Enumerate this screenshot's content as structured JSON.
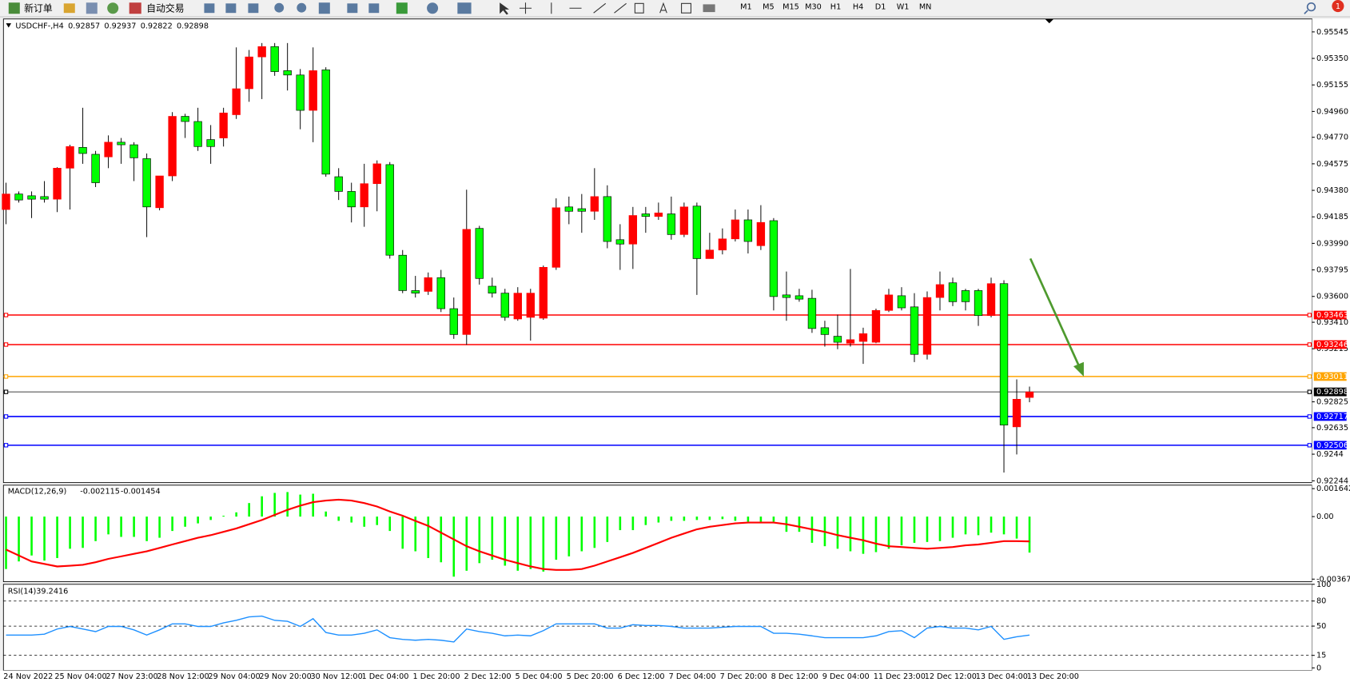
{
  "toolbar": {
    "new_order": "新订单",
    "auto_trading": "自动交易",
    "timeframes": [
      "M1",
      "M5",
      "M15",
      "M30",
      "H1",
      "H4",
      "D1",
      "W1",
      "MN"
    ],
    "notification_count": 1
  },
  "chart_data": [
    {
      "type": "candlestick",
      "title": "USDCHF-,H4",
      "categories": [
        "24 Nov 2022",
        null,
        null,
        null,
        "25 Nov 04:00",
        null,
        null,
        null,
        "27 Nov 23:00",
        null,
        null,
        null,
        "28 Nov 12:00",
        null,
        null,
        null,
        "29 Nov 04:00",
        null,
        null,
        null,
        "29 Nov 20:00",
        null,
        null,
        null,
        "30 Nov 12:00",
        null,
        null,
        null,
        "1 Dec 04:00",
        null,
        null,
        null,
        "1 Dec 20:00",
        null,
        null,
        null,
        "2 Dec 12:00",
        null,
        null,
        null,
        "5 Dec 04:00",
        null,
        null,
        null,
        "5 Dec 20:00",
        null,
        null,
        null,
        "6 Dec 12:00",
        null,
        null,
        null,
        "7 Dec 04:00",
        null,
        null,
        null,
        "7 Dec 20:00",
        null,
        null,
        null,
        "8 Dec 12:00",
        null,
        null,
        null,
        "9 Dec 04:00",
        null,
        null,
        null,
        "11 Dec 23:00",
        null,
        null,
        null,
        "12 Dec 12:00",
        null,
        null,
        null,
        "13 Dec 04:00",
        null,
        null,
        null,
        "13 Dec 20:00"
      ],
      "open": [
        0.94239,
        0.94353,
        0.9434,
        0.94334,
        0.94315,
        0.94543,
        0.94696,
        0.94645,
        0.94626,
        0.94734,
        0.94715,
        0.94613,
        0.94252,
        0.94486,
        0.94924,
        0.94886,
        0.94753,
        0.94765,
        0.94936,
        0.95127,
        0.95361,
        0.95437,
        0.9526,
        0.95228,
        0.94968,
        0.95266,
        0.9448,
        0.94372,
        0.94258,
        0.94429,
        0.94569,
        0.93903,
        0.93643,
        0.93637,
        0.93738,
        0.9351,
        0.9332,
        0.941,
        0.93675,
        0.93624,
        0.93434,
        0.93446,
        0.9344,
        0.93814,
        0.94258,
        0.94245,
        0.94226,
        0.94334,
        0.94017,
        0.93985,
        0.94207,
        0.94188,
        0.94207,
        0.94055,
        0.94264,
        0.93878,
        0.93941,
        0.94023,
        0.94163,
        0.93973,
        0.94157,
        0.93611,
        0.93605,
        0.93586,
        0.9337,
        0.93307,
        0.93256,
        0.93269,
        0.93263,
        0.93497,
        0.93605,
        0.93523,
        0.93174,
        0.93592,
        0.937,
        0.93643,
        0.93643,
        0.93459,
        0.93694,
        0.92641,
        0.92857
      ],
      "high": [
        0.94436,
        0.94372,
        0.94372,
        0.94448,
        0.9455,
        0.94715,
        0.94987,
        0.9467,
        0.94784,
        0.94765,
        0.94734,
        0.94651,
        0.94486,
        0.94955,
        0.94943,
        0.94987,
        0.9486,
        0.94987,
        0.95431,
        0.95412,
        0.95463,
        0.95463,
        0.95463,
        0.95272,
        0.95431,
        0.95285,
        0.94543,
        0.94436,
        0.94575,
        0.946,
        0.94588,
        0.93941,
        0.93751,
        0.93776,
        0.93795,
        0.93592,
        0.94385,
        0.94119,
        0.93738,
        0.93656,
        0.93668,
        0.93656,
        0.93827,
        0.94321,
        0.94334,
        0.94353,
        0.94543,
        0.94417,
        0.94131,
        0.94258,
        0.94258,
        0.9429,
        0.94334,
        0.9429,
        0.9429,
        0.94068,
        0.941,
        0.94239,
        0.94239,
        0.94271,
        0.94176,
        0.93783,
        0.93656,
        0.93649,
        0.93421,
        0.93466,
        0.93802,
        0.9337,
        0.9351,
        0.93656,
        0.93668,
        0.93624,
        0.93637,
        0.93783,
        0.93738,
        0.93656,
        0.93656,
        0.93738,
        0.93719,
        0.9299,
        0.92937
      ],
      "low": [
        0.94131,
        0.9429,
        0.94176,
        0.9429,
        0.9422,
        0.94239,
        0.94575,
        0.94404,
        0.94543,
        0.94575,
        0.94448,
        0.94036,
        0.94233,
        0.94448,
        0.94765,
        0.9467,
        0.94575,
        0.94702,
        0.94905,
        0.95031,
        0.95051,
        0.95222,
        0.95114,
        0.94829,
        0.94734,
        0.9448,
        0.94309,
        0.94144,
        0.94112,
        0.94226,
        0.93878,
        0.93624,
        0.93592,
        0.93611,
        0.93485,
        0.93288,
        0.93244,
        0.93687,
        0.93592,
        0.93421,
        0.93421,
        0.93275,
        0.93428,
        0.93795,
        0.94131,
        0.94068,
        0.94163,
        0.93954,
        0.93795,
        0.93802,
        0.94068,
        0.94163,
        0.94017,
        0.94036,
        0.93611,
        0.93878,
        0.93909,
        0.94004,
        0.93916,
        0.93941,
        0.93497,
        0.93421,
        0.93561,
        0.93332,
        0.93231,
        0.93212,
        0.93231,
        0.93104,
        0.93256,
        0.93485,
        0.93497,
        0.93117,
        0.93136,
        0.93497,
        0.93529,
        0.93497,
        0.93383,
        0.93446,
        0.92305,
        0.92438,
        0.92822
      ],
      "close": [
        0.94353,
        0.94309,
        0.94315,
        0.94315,
        0.94543,
        0.94702,
        0.94651,
        0.94436,
        0.94734,
        0.94715,
        0.94619,
        0.94258,
        0.94486,
        0.94924,
        0.94886,
        0.94702,
        0.94702,
        0.94949,
        0.95127,
        0.95361,
        0.95437,
        0.95253,
        0.95228,
        0.94968,
        0.9526,
        0.94499,
        0.94372,
        0.94258,
        0.94429,
        0.94575,
        0.93903,
        0.93643,
        0.93624,
        0.93738,
        0.9351,
        0.9332,
        0.94093,
        0.93732,
        0.93624,
        0.93446,
        0.93624,
        0.93624,
        0.93814,
        0.94252,
        0.94226,
        0.94226,
        0.94334,
        0.94004,
        0.93985,
        0.94195,
        0.94188,
        0.94214,
        0.94055,
        0.94258,
        0.93878,
        0.93941,
        0.94023,
        0.94163,
        0.94004,
        0.94144,
        0.93599,
        0.93592,
        0.9358,
        0.93364,
        0.9332,
        0.93263,
        0.93282,
        0.93326,
        0.93497,
        0.93611,
        0.93516,
        0.93174,
        0.93592,
        0.93687,
        0.93561,
        0.93561,
        0.93459,
        0.93694,
        0.92654,
        0.92844,
        0.92898
      ],
      "up_color": "#ff0000",
      "down_color": "#00ff00",
      "ylim": [
        0.92231,
        0.9564
      ],
      "yticks": [
        0.95545,
        {
          "value": 0.9535,
          "label": "0.95350"
        },
        0.95155,
        {
          "value": 0.9496,
          "label": "0.94960"
        },
        {
          "value": 0.9477,
          "label": "0.94770"
        },
        0.94575,
        {
          "value": 0.9438,
          "label": "0.94380"
        },
        0.94185,
        {
          "value": 0.9399,
          "label": "0.93990"
        },
        0.93795,
        {
          "value": 0.936,
          "label": "0.93600"
        },
        {
          "value": 0.9341,
          "label": "0.93410"
        },
        0.93215,
        0.92825,
        0.92635,
        0.9244,
        0.92244
      ],
      "levels": [
        {
          "value": 0.93463,
          "color": "#ff0000"
        },
        {
          "value": 0.93246,
          "color": "#ff0000"
        },
        {
          "value": 0.93011,
          "color": "#ffa500"
        },
        {
          "value": 0.92898,
          "color": "#000000"
        },
        {
          "value": 0.92717,
          "color": "#0000ff"
        },
        {
          "value": 0.92506,
          "color": "#0000ff"
        }
      ]
    },
    {
      "type": "macd",
      "title": "MACD(12,26,9)",
      "series": [
        {
          "mark": "bar",
          "color": "#00ff00",
          "values": [
            -0.003081,
            -0.002634,
            -0.002286,
            -0.002584,
            -0.002435,
            -0.001889,
            -0.001839,
            -0.001441,
            -0.001044,
            -0.001193,
            -0.001193,
            -0.001441,
            -0.001243,
            -0.000845,
            -0.000596,
            -0.000398,
            -0.000199,
            5e-05,
            0.000249,
            0.000795,
            0.001193,
            0.001392,
            0.001441,
            0.001292,
            0.001342,
            0.000298,
            -0.000249,
            -0.000348,
            -0.000596,
            -0.000497,
            -0.000845,
            -0.001889,
            -0.002038,
            -0.002435,
            -0.002684,
            -0.003529,
            -0.003181,
            -0.002734,
            -0.002535,
            -0.002883,
            -0.003181,
            -0.003081,
            -0.003231,
            -0.002535,
            -0.002336,
            -0.002038,
            -0.001839,
            -0.001491,
            -0.000795,
            -0.000795,
            -0.000497,
            -0.000348,
            -0.000249,
            -0.000249,
            -0.000199,
            -0.000199,
            -0.000149,
            -0.000249,
            -0.000298,
            -0.000298,
            -0.000298,
            -0.000895,
            -0.000895,
            -0.001541,
            -0.00174,
            -0.001889,
            -0.002038,
            -0.002187,
            -0.002087,
            -0.001889,
            -0.00169,
            -0.001541,
            -0.001491,
            -0.001441,
            -0.001243,
            -0.001044,
            -0.001093,
            -0.000944,
            -0.001044,
            -0.001292,
            -0.002115
          ]
        },
        {
          "mark": "line",
          "color": "#ff0000",
          "values": [
            -0.001938,
            -0.002286,
            -0.002634,
            -0.002783,
            -0.002932,
            -0.002883,
            -0.002833,
            -0.002684,
            -0.002485,
            -0.002336,
            -0.002187,
            -0.002038,
            -0.001839,
            -0.00164,
            -0.001441,
            -0.001243,
            -0.001093,
            -0.000895,
            -0.000696,
            -0.000447,
            -0.000199,
            9.9e-05,
            0.000398,
            0.000646,
            0.000845,
            0.000944,
            0.000994,
            0.000944,
            0.000795,
            0.000596,
            0.000298,
            5e-05,
            -0.000249,
            -0.000547,
            -0.000944,
            -0.001342,
            -0.00174,
            -0.002038,
            -0.002286,
            -0.002535,
            -0.002734,
            -0.002932,
            -0.003081,
            -0.003131,
            -0.003131,
            -0.003081,
            -0.002883,
            -0.002634,
            -0.002386,
            -0.002137,
            -0.001839,
            -0.001541,
            -0.001243,
            -0.000994,
            -0.000746,
            -0.000596,
            -0.000497,
            -0.000398,
            -0.000348,
            -0.000348,
            -0.000348,
            -0.000447,
            -0.000596,
            -0.000746,
            -0.000895,
            -0.001093,
            -0.001243,
            -0.001392,
            -0.00159,
            -0.00174,
            -0.001789,
            -0.001839,
            -0.001889,
            -0.001839,
            -0.001789,
            -0.00169,
            -0.00164,
            -0.001541,
            -0.001441,
            -0.001441,
            -0.001454
          ]
        }
      ],
      "ylim": [
        -0.003674,
        0.001642
      ],
      "yticks": [
        0.001642,
        {
          "value": 0,
          "label": "0.00"
        },
        -0.003674
      ]
    },
    {
      "type": "line",
      "title": "RSI(14)",
      "color": "#1e90ff",
      "values": [
        39.3,
        39.3,
        39.3,
        40.3,
        46.5,
        49.6,
        46.5,
        43.4,
        49.6,
        49.6,
        45.5,
        39.3,
        45.5,
        52.7,
        52.7,
        49.6,
        49.6,
        53.8,
        56.9,
        61.0,
        62.0,
        56.9,
        55.8,
        49.6,
        58.9,
        42.4,
        39.3,
        39.3,
        41.4,
        45.5,
        36.2,
        34.1,
        33.1,
        34.1,
        33.1,
        31.0,
        46.5,
        43.4,
        41.4,
        38.3,
        39.3,
        38.3,
        44.5,
        52.7,
        52.7,
        52.7,
        52.7,
        47.6,
        47.6,
        51.7,
        50.7,
        50.7,
        49.6,
        47.6,
        47.6,
        47.6,
        48.6,
        49.6,
        49.6,
        49.6,
        41.4,
        41.4,
        40.3,
        38.3,
        36.2,
        36.2,
        36.2,
        36.2,
        38.3,
        43.4,
        44.5,
        36.2,
        47.6,
        49.6,
        47.6,
        47.6,
        45.5,
        49.6,
        34.1,
        37.2,
        39.2416
      ],
      "ylim": [
        0,
        100
      ],
      "yticks": [
        100,
        80,
        50,
        15,
        0
      ],
      "grid": "dashed"
    }
  ]
}
